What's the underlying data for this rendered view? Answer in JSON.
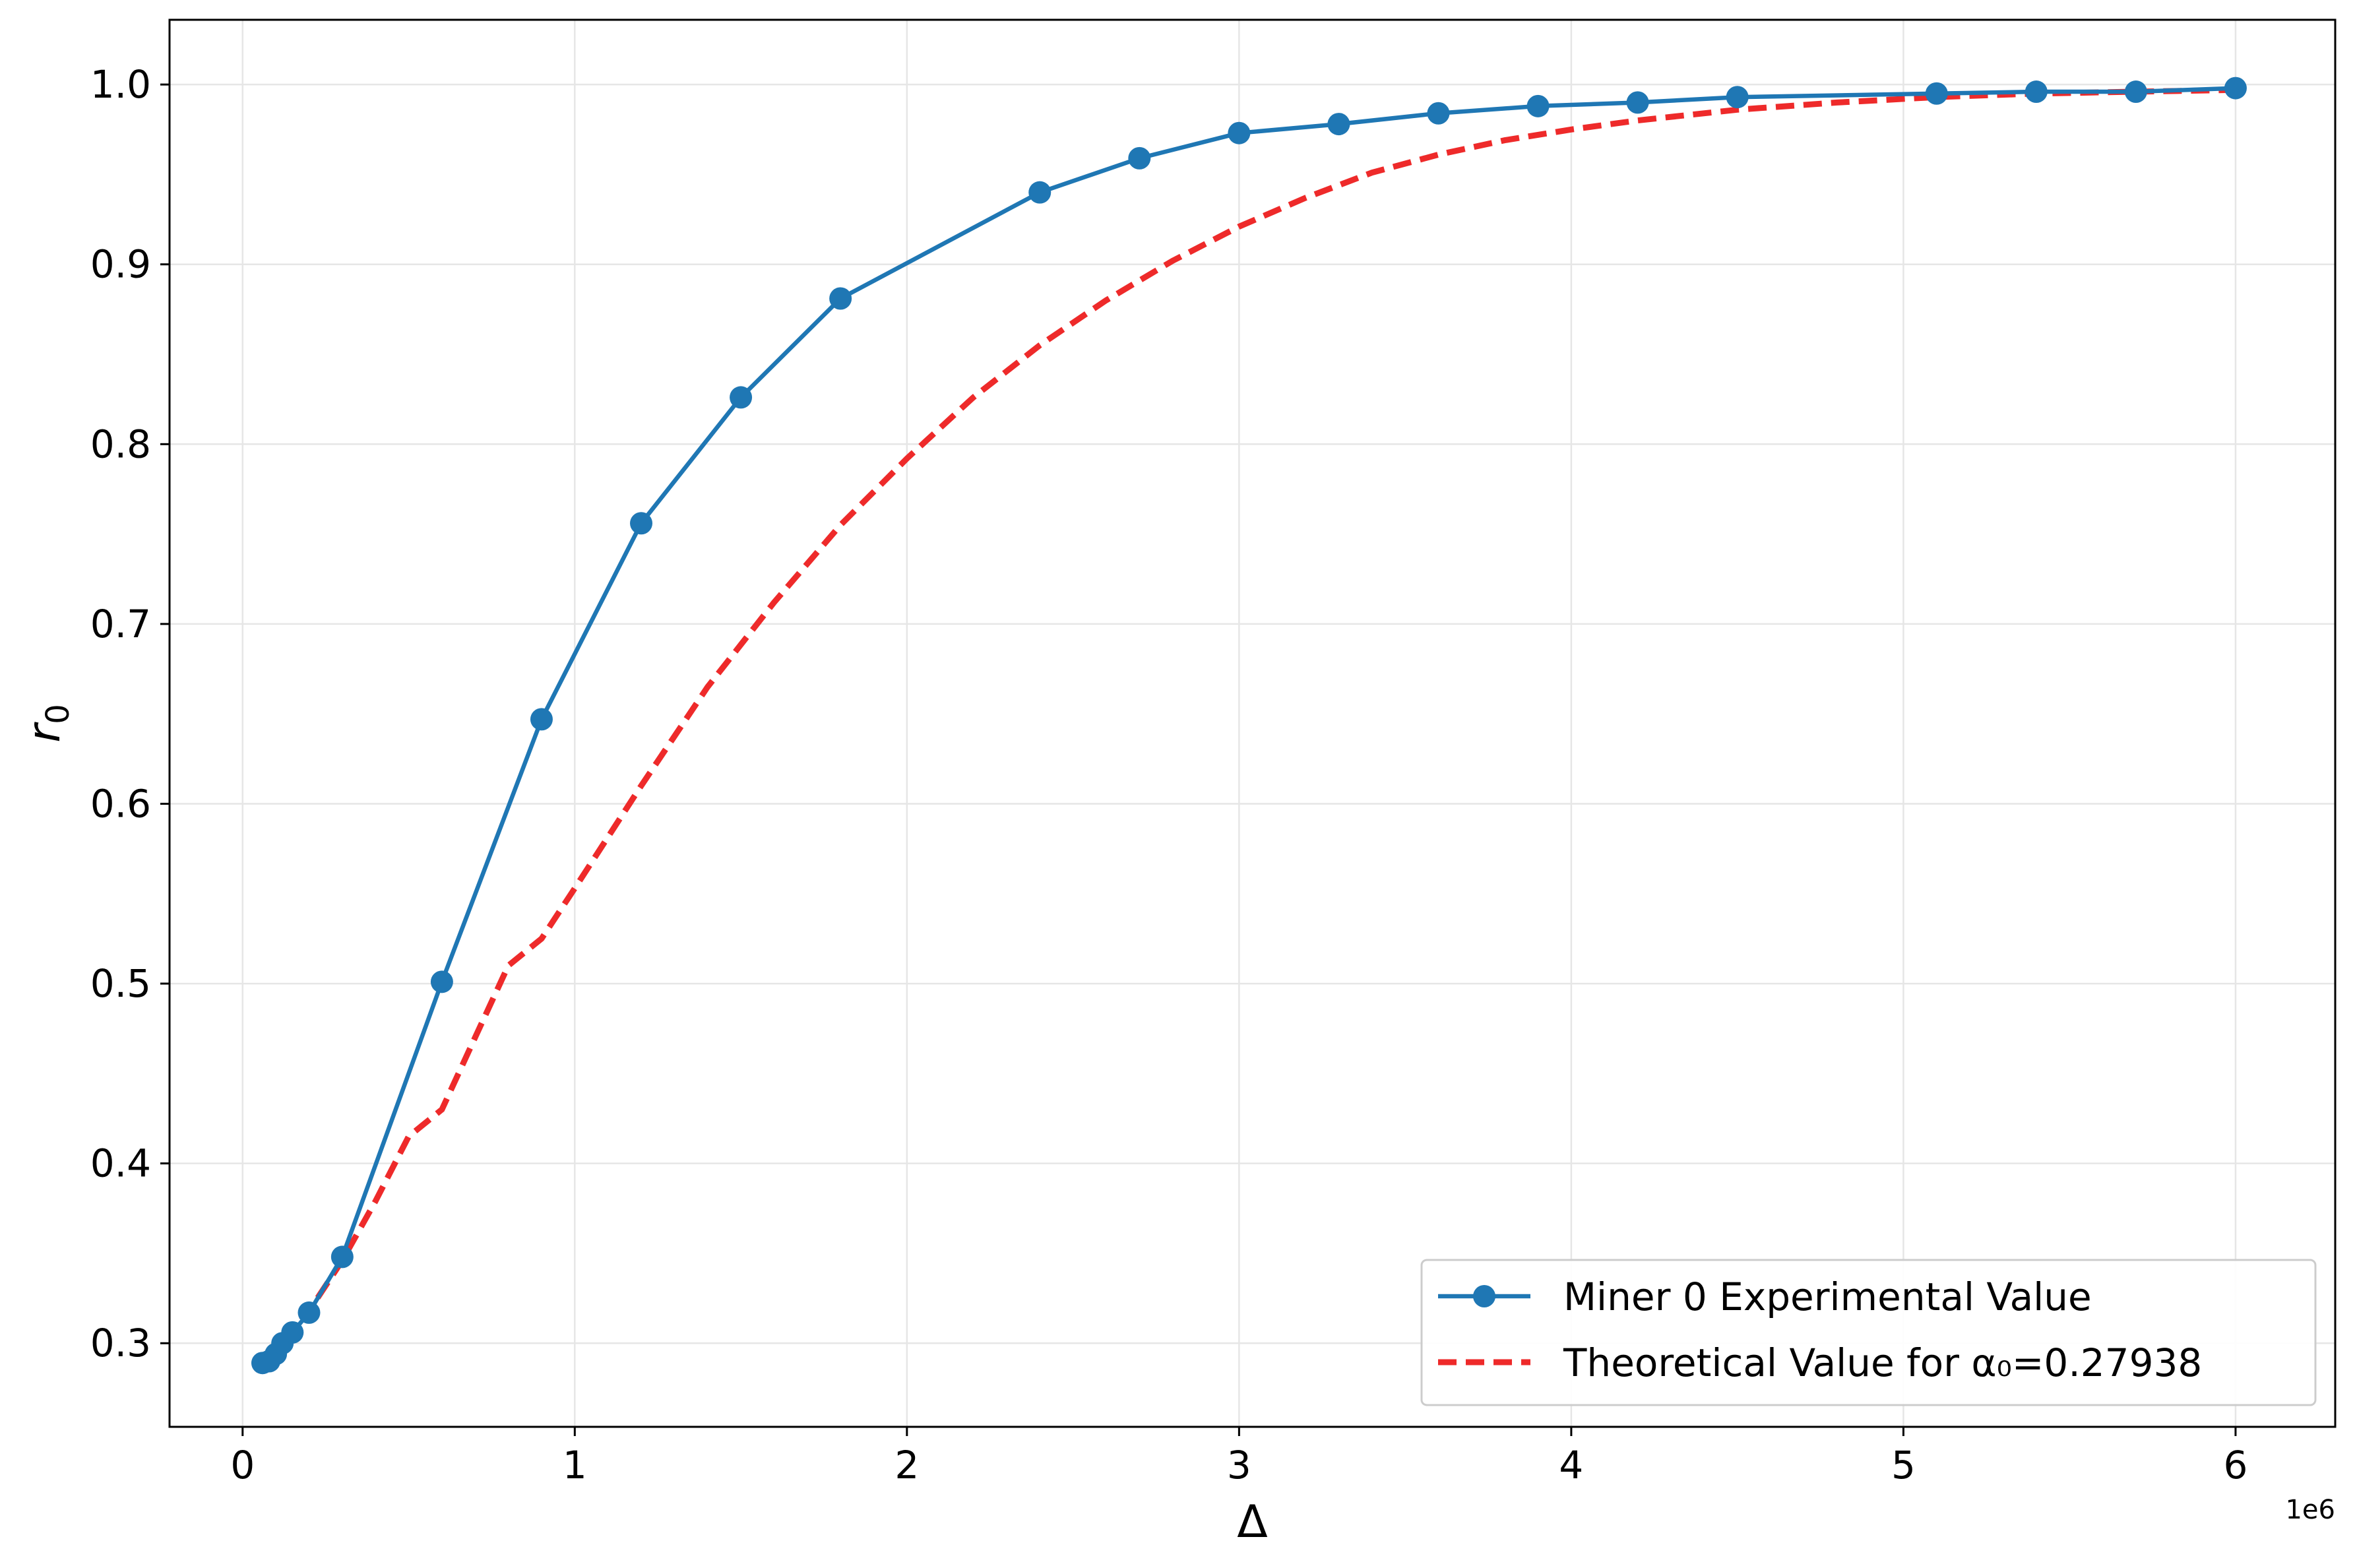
{
  "chart_data": {
    "type": "line",
    "title": "",
    "xlabel": "Δ",
    "ylabel": "r",
    "ylabel_subscript": "0",
    "x_offset_text": "1e6",
    "xlim": [
      -220000,
      6300000
    ],
    "ylim": [
      0.2535,
      1.036
    ],
    "x_ticks": [
      0,
      1000000,
      2000000,
      3000000,
      4000000,
      5000000,
      6000000
    ],
    "x_tick_labels": [
      "0",
      "1",
      "2",
      "3",
      "4",
      "5",
      "6"
    ],
    "y_ticks": [
      0.3,
      0.4,
      0.5,
      0.6,
      0.7,
      0.8,
      0.9,
      1.0
    ],
    "y_tick_labels": [
      "0.3",
      "0.4",
      "0.5",
      "0.6",
      "0.7",
      "0.8",
      "0.9",
      "1.0"
    ],
    "grid": true,
    "legend_position": "lower right",
    "series": [
      {
        "name": "Miner 0 Experimental Value",
        "style": "solid-marker",
        "color": "#1f77b4",
        "x": [
          60000,
          80000,
          100000,
          120000,
          150000,
          200000,
          300000,
          600000,
          900000,
          1200000,
          1500000,
          1800000,
          2400000,
          2700000,
          3000000,
          3300000,
          3600000,
          3900000,
          4200000,
          4500000,
          5100000,
          5400000,
          5700000,
          6000000
        ],
        "y": [
          0.289,
          0.29,
          0.294,
          0.3,
          0.306,
          0.317,
          0.348,
          0.501,
          0.647,
          0.756,
          0.826,
          0.881,
          0.94,
          0.959,
          0.973,
          0.978,
          0.984,
          0.988,
          0.99,
          0.993,
          0.995,
          0.996,
          0.996,
          0.998
        ]
      },
      {
        "name": "Theoretical Value for α₀=0.27938",
        "style": "dashed",
        "color": "#ee2a2a",
        "x": [
          60000,
          100000,
          150000,
          200000,
          300000,
          400000,
          500000,
          600000,
          700000,
          800000,
          900000,
          1000000,
          1200000,
          1400000,
          1600000,
          1800000,
          2000000,
          2200000,
          2400000,
          2600000,
          2800000,
          3000000,
          3200000,
          3400000,
          3600000,
          3800000,
          4000000,
          4200000,
          4500000,
          4800000,
          5100000,
          5400000,
          5700000,
          6000000
        ],
        "y": [
          0.291,
          0.297,
          0.307,
          0.318,
          0.346,
          0.379,
          0.415,
          0.43,
          0.47,
          0.51,
          0.525,
          0.553,
          0.61,
          0.665,
          0.712,
          0.755,
          0.792,
          0.826,
          0.855,
          0.88,
          0.902,
          0.921,
          0.937,
          0.951,
          0.961,
          0.969,
          0.975,
          0.98,
          0.986,
          0.99,
          0.993,
          0.995,
          0.996,
          0.997
        ]
      }
    ]
  }
}
